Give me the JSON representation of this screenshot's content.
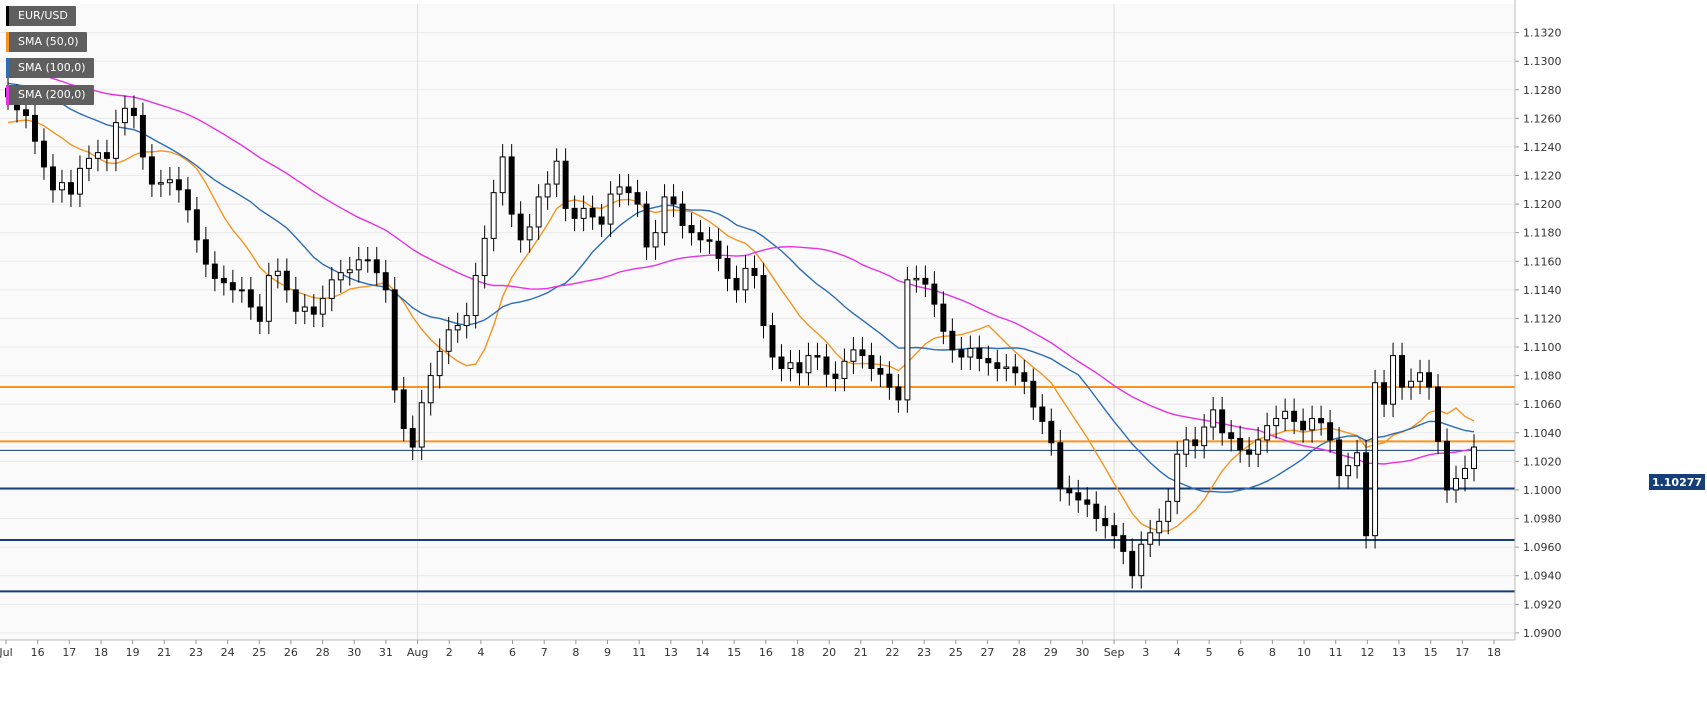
{
  "chart_data": {
    "type": "candlestick",
    "instrument": "EUR/USD",
    "legend": [
      {
        "label": "EUR/USD",
        "color": "#000000"
      },
      {
        "label": "SMA (50,0)",
        "color": "#f7931e"
      },
      {
        "label": "SMA (100,0)",
        "color": "#2c6db5"
      },
      {
        "label": "SMA (200,0)",
        "color": "#e532e5"
      }
    ],
    "current_price": "1.10277",
    "ylim": [
      1.0895,
      1.134
    ],
    "y_ticks": [
      "1.1320",
      "1.1300",
      "1.1280",
      "1.1260",
      "1.1240",
      "1.1220",
      "1.1200",
      "1.1180",
      "1.1160",
      "1.1140",
      "1.1120",
      "1.1100",
      "1.1080",
      "1.1060",
      "1.1040",
      "1.1020",
      "1.1000",
      "1.0980",
      "1.0960",
      "1.0940",
      "1.0920",
      "1.0900"
    ],
    "x_ticks": [
      "Jul",
      "16",
      "17",
      "18",
      "19",
      "21",
      "23",
      "24",
      "25",
      "26",
      "28",
      "30",
      "31",
      "Aug",
      "2",
      "4",
      "6",
      "7",
      "8",
      "9",
      "11",
      "13",
      "14",
      "15",
      "16",
      "18",
      "20",
      "21",
      "22",
      "23",
      "25",
      "27",
      "28",
      "29",
      "30",
      "Sep",
      "3",
      "4",
      "5",
      "6",
      "8",
      "10",
      "11",
      "12",
      "13",
      "15",
      "17",
      "18"
    ],
    "resistance_levels": [
      1.1072,
      1.1034
    ],
    "support_levels": [
      1.1001,
      1.0965,
      1.0929
    ],
    "colors": {
      "bull": "#ffffff",
      "bear": "#000000",
      "sma50": "#f7931e",
      "sma100": "#2c6db5",
      "sma200": "#e532e5",
      "resistance": "#f7931e",
      "support": "#163e7a",
      "price_line": "#163e7a"
    },
    "closes": [
      1.1275,
      1.1266,
      1.1262,
      1.1244,
      1.1226,
      1.121,
      1.1215,
      1.1207,
      1.1225,
      1.1232,
      1.1236,
      1.1232,
      1.1257,
      1.1267,
      1.1262,
      1.1233,
      1.1214,
      1.1215,
      1.1217,
      1.121,
      1.1196,
      1.1175,
      1.1158,
      1.1148,
      1.1145,
      1.114,
      1.114,
      1.1128,
      1.1118,
      1.115,
      1.1153,
      1.114,
      1.1125,
      1.1128,
      1.1123,
      1.1134,
      1.1147,
      1.1152,
      1.1154,
      1.1161,
      1.1161,
      1.1152,
      1.114,
      1.107,
      1.1043,
      1.103,
      1.1061,
      1.108,
      1.1097,
      1.1112,
      1.1115,
      1.1122,
      1.115,
      1.1176,
      1.1208,
      1.1233,
      1.1193,
      1.1175,
      1.1184,
      1.1205,
      1.1214,
      1.123,
      1.1197,
      1.119,
      1.1197,
      1.1191,
      1.1186,
      1.1207,
      1.1212,
      1.1208,
      1.12,
      1.117,
      1.118,
      1.1205,
      1.12,
      1.1185,
      1.118,
      1.1175,
      1.1174,
      1.1162,
      1.1148,
      1.114,
      1.1155,
      1.115,
      1.1115,
      1.1093,
      1.1085,
      1.1089,
      1.1082,
      1.1094,
      1.1093,
      1.1081,
      1.1078,
      1.109,
      1.1098,
      1.1094,
      1.1085,
      1.1081,
      1.1072,
      1.1063,
      1.1147,
      1.1148,
      1.1144,
      1.113,
      1.1111,
      1.1098,
      1.1093,
      1.1099,
      1.1092,
      1.1089,
      1.1085,
      1.1086,
      1.1082,
      1.1076,
      1.1058,
      1.1048,
      1.1033,
      1.1001,
      1.0998,
      1.0993,
      1.099,
      1.098,
      1.0975,
      1.0968,
      1.0957,
      1.094,
      1.0962,
      1.097,
      1.0978,
      1.0992,
      1.1025,
      1.1035,
      1.1031,
      1.1044,
      1.1056,
      1.104,
      1.1036,
      1.1028,
      1.1025,
      1.1035,
      1.1045,
      1.105,
      1.1055,
      1.1048,
      1.1042,
      1.105,
      1.1047,
      1.1035,
      1.101,
      1.1017,
      1.1026,
      1.0968,
      1.1075,
      1.106,
      1.1094,
      1.1072,
      1.1076,
      1.1082,
      1.1072,
      1.1034,
      1.1,
      1.1008,
      1.1015,
      1.103
    ],
    "closes_note_removed": true
  }
}
